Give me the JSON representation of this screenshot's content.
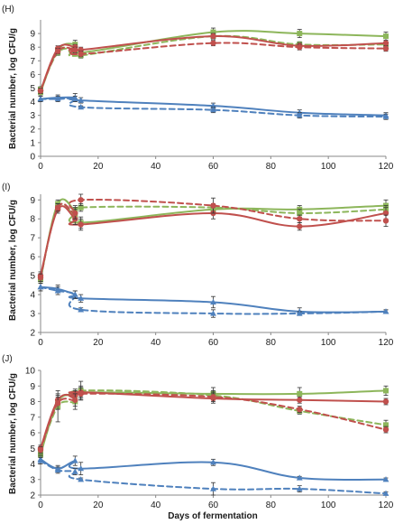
{
  "xlabel": "Days of fermentation",
  "chart_data": [
    {
      "type": "line",
      "panel_label": "(H)",
      "ylabel": "Bacterial number, log CFU/g",
      "xlim": [
        0,
        120
      ],
      "ylim": [
        0,
        10
      ],
      "x_ticks": [
        "0",
        "20",
        "40",
        "60",
        "80",
        "100",
        "120"
      ],
      "y_ticks": [
        "0",
        "1",
        "2",
        "3",
        "4",
        "5",
        "6",
        "7",
        "8",
        "9"
      ],
      "grid": false,
      "series": [
        {
          "color": "#8db65b",
          "dash": false,
          "marker": "square",
          "x": [
            0,
            6,
            12,
            14,
            60,
            90,
            120
          ],
          "y": [
            4.7,
            7.8,
            8.2,
            7.6,
            9.1,
            9.0,
            8.8
          ],
          "err": [
            0.2,
            0.2,
            0.3,
            0.2,
            0.3,
            0.3,
            0.3
          ]
        },
        {
          "color": "#8db65b",
          "dash": true,
          "marker": "square",
          "x": [
            0,
            6,
            12,
            14,
            60,
            90,
            120
          ],
          "y": [
            4.9,
            7.6,
            7.8,
            7.4,
            8.8,
            8.2,
            8.2
          ],
          "err": [
            0.2,
            0.2,
            0.2,
            0.2,
            0.2,
            0.2,
            0.2
          ]
        },
        {
          "color": "#c0504d",
          "dash": false,
          "marker": "diamond",
          "x": [
            0,
            6,
            12,
            14,
            60,
            90,
            120
          ],
          "y": [
            4.8,
            7.9,
            8.0,
            7.8,
            8.8,
            8.1,
            8.3
          ],
          "err": [
            0.2,
            0.2,
            0.2,
            0.2,
            0.2,
            0.2,
            0.2
          ]
        },
        {
          "color": "#c0504d",
          "dash": true,
          "marker": "diamond",
          "x": [
            0,
            6,
            12,
            14,
            60,
            90,
            120
          ],
          "y": [
            4.8,
            7.7,
            7.8,
            7.5,
            8.3,
            8.0,
            7.9
          ],
          "err": [
            0.2,
            0.2,
            0.2,
            0.2,
            0.2,
            0.2,
            0.2
          ]
        },
        {
          "color": "#4f81bd",
          "dash": false,
          "marker": "triangle",
          "x": [
            0,
            6,
            12,
            14,
            60,
            90,
            120
          ],
          "y": [
            4.2,
            4.3,
            4.3,
            4.1,
            3.7,
            3.2,
            3.0
          ],
          "err": [
            0.2,
            0.2,
            0.3,
            0.2,
            0.2,
            0.2,
            0.2
          ]
        },
        {
          "color": "#4f81bd",
          "dash": true,
          "marker": "triangle",
          "x": [
            0,
            6,
            12,
            14,
            60,
            90,
            120
          ],
          "y": [
            4.2,
            4.2,
            4.2,
            3.6,
            3.4,
            3.0,
            2.9
          ],
          "err": [
            0.2,
            0.2,
            0.2,
            0.1,
            0.2,
            0.2,
            0.2
          ]
        }
      ]
    },
    {
      "type": "line",
      "panel_label": "(I)",
      "ylabel": "Bacterial number, log CFU/g",
      "xlim": [
        0,
        120
      ],
      "ylim": [
        2,
        9.3
      ],
      "x_ticks": [
        "0",
        "20",
        "40",
        "60",
        "80",
        "100",
        "120"
      ],
      "y_ticks": [
        "2",
        "3",
        "4",
        "5",
        "6",
        "7",
        "8",
        "9"
      ],
      "grid": false,
      "series": [
        {
          "color": "#8db65b",
          "dash": false,
          "marker": "square",
          "x": [
            0,
            6,
            12,
            14,
            60,
            90,
            120
          ],
          "y": [
            4.8,
            8.8,
            8.4,
            7.8,
            8.5,
            8.5,
            8.7
          ],
          "err": [
            0.2,
            0.2,
            0.3,
            0.3,
            0.2,
            0.2,
            0.3
          ]
        },
        {
          "color": "#8db65b",
          "dash": true,
          "marker": "square",
          "x": [
            0,
            6,
            12,
            14,
            60,
            90,
            120
          ],
          "y": [
            4.9,
            8.6,
            8.2,
            8.6,
            8.6,
            8.3,
            8.5
          ],
          "err": [
            0.2,
            0.2,
            0.3,
            0.2,
            0.2,
            0.2,
            0.2
          ]
        },
        {
          "color": "#c0504d",
          "dash": false,
          "marker": "diamond",
          "x": [
            0,
            6,
            12,
            14,
            60,
            90,
            120
          ],
          "y": [
            5.0,
            8.5,
            8.0,
            7.7,
            8.3,
            7.6,
            8.3
          ],
          "err": [
            0.2,
            0.2,
            0.3,
            0.3,
            0.3,
            0.2,
            0.3
          ]
        },
        {
          "color": "#c0504d",
          "dash": true,
          "marker": "diamond",
          "x": [
            0,
            6,
            12,
            14,
            60,
            90,
            120
          ],
          "y": [
            4.9,
            8.6,
            8.3,
            9.0,
            8.7,
            8.0,
            7.9
          ],
          "err": [
            0.2,
            0.2,
            0.3,
            0.3,
            0.4,
            0.2,
            0.3
          ]
        },
        {
          "color": "#4f81bd",
          "dash": false,
          "marker": "triangle",
          "x": [
            0,
            6,
            12,
            14,
            60,
            90,
            120
          ],
          "y": [
            4.4,
            4.3,
            4.0,
            3.8,
            3.6,
            3.1,
            3.1
          ],
          "err": [
            0.2,
            0.2,
            0.2,
            0.2,
            0.3,
            0.2,
            0.1
          ]
        },
        {
          "color": "#4f81bd",
          "dash": true,
          "marker": "triangle",
          "x": [
            0,
            6,
            12,
            14,
            60,
            90,
            120
          ],
          "y": [
            4.4,
            4.2,
            4.0,
            3.2,
            3.0,
            3.0,
            3.1
          ],
          "err": [
            0.2,
            0.2,
            0.2,
            0.1,
            0.2,
            0.1,
            0.1
          ]
        }
      ]
    },
    {
      "type": "line",
      "panel_label": "(J)",
      "ylabel": "Bacterial number, log CFU/g",
      "xlim": [
        0,
        120
      ],
      "ylim": [
        2,
        10
      ],
      "x_ticks": [
        "0",
        "20",
        "40",
        "60",
        "80",
        "100",
        "120"
      ],
      "y_ticks": [
        "2",
        "3",
        "4",
        "5",
        "6",
        "7",
        "8",
        "9",
        "10"
      ],
      "grid": false,
      "series": [
        {
          "color": "#8db65b",
          "dash": false,
          "marker": "square",
          "x": [
            0,
            6,
            12,
            14,
            60,
            90,
            120
          ],
          "y": [
            4.6,
            8.0,
            8.4,
            8.6,
            8.5,
            8.5,
            8.7
          ],
          "err": [
            0.2,
            0.5,
            0.4,
            0.4,
            0.4,
            0.4,
            0.3
          ]
        },
        {
          "color": "#8db65b",
          "dash": true,
          "marker": "square",
          "x": [
            0,
            6,
            12,
            14,
            60,
            90,
            120
          ],
          "y": [
            4.8,
            7.7,
            8.0,
            8.7,
            8.4,
            7.4,
            6.5
          ],
          "err": [
            0.2,
            1.0,
            0.5,
            0.6,
            0.3,
            0.2,
            0.3
          ]
        },
        {
          "color": "#c0504d",
          "dash": false,
          "marker": "diamond",
          "x": [
            0,
            6,
            12,
            14,
            60,
            90,
            120
          ],
          "y": [
            5.0,
            8.1,
            8.4,
            8.6,
            8.2,
            8.1,
            8.0
          ],
          "err": [
            0.2,
            0.3,
            0.3,
            0.3,
            0.3,
            0.2,
            0.2
          ]
        },
        {
          "color": "#c0504d",
          "dash": true,
          "marker": "diamond",
          "x": [
            0,
            6,
            12,
            14,
            60,
            90,
            120
          ],
          "y": [
            4.9,
            7.9,
            8.1,
            8.5,
            8.3,
            7.5,
            6.2
          ],
          "err": [
            0.2,
            0.4,
            0.4,
            0.4,
            0.3,
            0.2,
            0.2
          ]
        },
        {
          "color": "#4f81bd",
          "dash": false,
          "marker": "triangle",
          "x": [
            0,
            6,
            12,
            14,
            60,
            90,
            120
          ],
          "y": [
            4.3,
            3.7,
            4.2,
            3.7,
            4.1,
            3.1,
            3.0
          ],
          "err": [
            0.2,
            0.2,
            0.3,
            0.4,
            0.2,
            0.1,
            0.1
          ]
        },
        {
          "color": "#4f81bd",
          "dash": true,
          "marker": "triangle",
          "x": [
            0,
            6,
            12,
            14,
            60,
            90,
            120
          ],
          "y": [
            4.2,
            3.6,
            3.5,
            3.0,
            2.4,
            2.4,
            2.1
          ],
          "err": [
            0.2,
            0.2,
            0.2,
            0.1,
            0.4,
            0.2,
            0.1
          ]
        }
      ]
    }
  ]
}
